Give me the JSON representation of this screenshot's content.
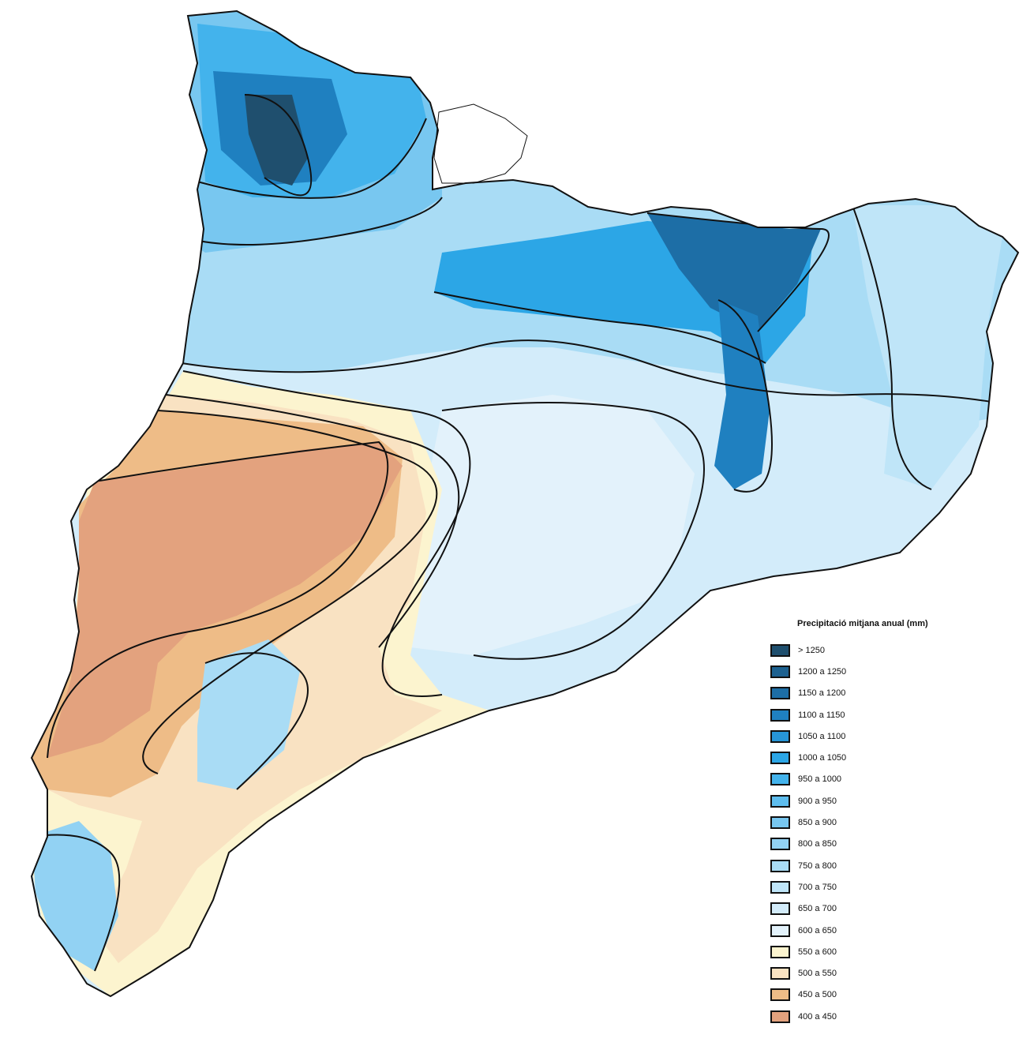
{
  "legend": {
    "title": "Precipitació mitjana anual (mm)",
    "items": [
      {
        "label": "> 1250",
        "color": "#1f4f6e"
      },
      {
        "label": "1200 a 1250",
        "color": "#1d6190"
      },
      {
        "label": "1150 a 1200",
        "color": "#1d6ea6"
      },
      {
        "label": "1100 a 1150",
        "color": "#1f80c0"
      },
      {
        "label": "1050 a 1100",
        "color": "#2796d8"
      },
      {
        "label": "1000 a 1050",
        "color": "#2ca6e6"
      },
      {
        "label": "950 a 1000",
        "color": "#43b3ec"
      },
      {
        "label": "900 a 950",
        "color": "#5ebdee"
      },
      {
        "label": "850 a 900",
        "color": "#78c7f0"
      },
      {
        "label": "800 a 850",
        "color": "#92d2f3"
      },
      {
        "label": "750 a 800",
        "color": "#a9dcf5"
      },
      {
        "label": "700 a 750",
        "color": "#bfe5f8"
      },
      {
        "label": "650 a 700",
        "color": "#d3ecfa"
      },
      {
        "label": "600 a 650",
        "color": "#e3f2fb"
      },
      {
        "label": "550 a 600",
        "color": "#fcf4cf"
      },
      {
        "label": "500 a 550",
        "color": "#f9e2c2"
      },
      {
        "label": "450 a 500",
        "color": "#eebc87"
      },
      {
        "label": "400 a 450",
        "color": "#e3a27e"
      }
    ]
  }
}
